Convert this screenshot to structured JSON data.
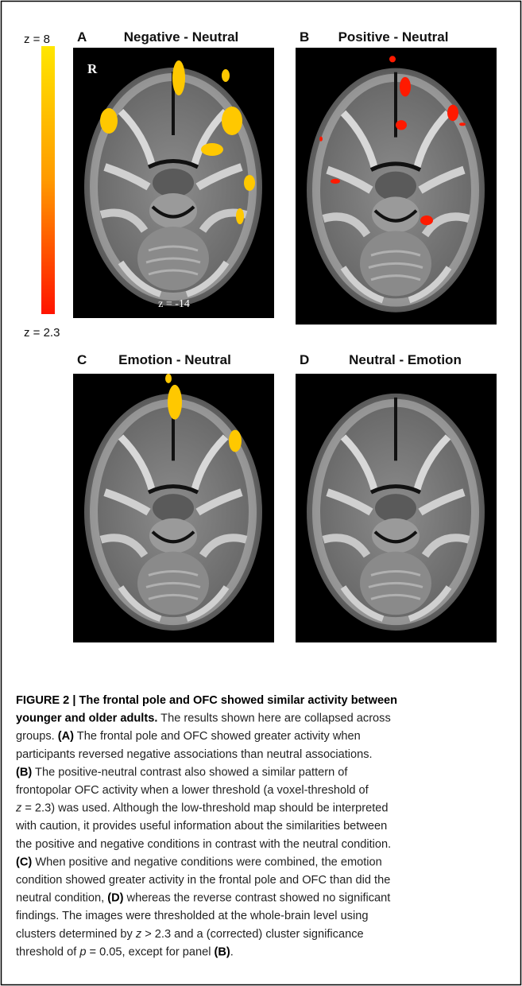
{
  "figure": {
    "colorbar": {
      "top_label": "z = 8",
      "bottom_label": "z = 2.3"
    },
    "panels": [
      {
        "letter": "A",
        "title": "Negative - Neutral",
        "side_label": "R",
        "slice_label": "z = -14"
      },
      {
        "letter": "B",
        "title": "Positive - Neutral"
      },
      {
        "letter": "C",
        "title": "Emotion - Neutral"
      },
      {
        "letter": "D",
        "title": "Neutral - Emotion"
      }
    ]
  },
  "caption": {
    "lines": [
      [
        {
          "text": "FIGURE 2 | The frontal pole and OFC showed similar activity between",
          "style": "b"
        }
      ],
      [
        {
          "text": "younger and older adults.",
          "style": "b"
        },
        {
          "text": " The results shown here are collapsed across"
        }
      ],
      [
        {
          "text": "groups. "
        },
        {
          "text": "(A)",
          "style": "b"
        },
        {
          "text": " The frontal pole and OFC showed greater activity when"
        }
      ],
      [
        {
          "text": "participants reversed negative associations than neutral associations."
        }
      ],
      [
        {
          "text": "(B)",
          "style": "b"
        },
        {
          "text": " The positive-neutral contrast also showed a similar pattern of"
        }
      ],
      [
        {
          "text": "frontopolar OFC activity when a lower threshold (a voxel-threshold of"
        }
      ],
      [
        {
          "text": "z",
          "style": "i"
        },
        {
          "text": " = 2.3) was used. Although the low-threshold map should be interpreted"
        }
      ],
      [
        {
          "text": "with caution, it provides useful information about the similarities between"
        }
      ],
      [
        {
          "text": "the positive and negative conditions in contrast with the neutral condition."
        }
      ],
      [
        {
          "text": "(C)",
          "style": "b"
        },
        {
          "text": " When positive and negative conditions were combined, the emotion"
        }
      ],
      [
        {
          "text": "condition showed greater activity in the frontal pole and OFC than did the"
        }
      ],
      [
        {
          "text": "neutral condition, "
        },
        {
          "text": "(D)",
          "style": "b"
        },
        {
          "text": " whereas the reverse contrast showed no significant"
        }
      ],
      [
        {
          "text": "findings. The images were thresholded at the whole-brain level using"
        }
      ],
      [
        {
          "text": "clusters determined by "
        },
        {
          "text": "z",
          "style": "i"
        },
        {
          "text": " > 2.3 and a (corrected) cluster significance"
        }
      ],
      [
        {
          "text": "threshold of "
        },
        {
          "text": "p",
          "style": "i"
        },
        {
          "text": " = 0.05, except for panel "
        },
        {
          "text": "(B)",
          "style": "b"
        },
        {
          "text": "."
        }
      ]
    ]
  }
}
